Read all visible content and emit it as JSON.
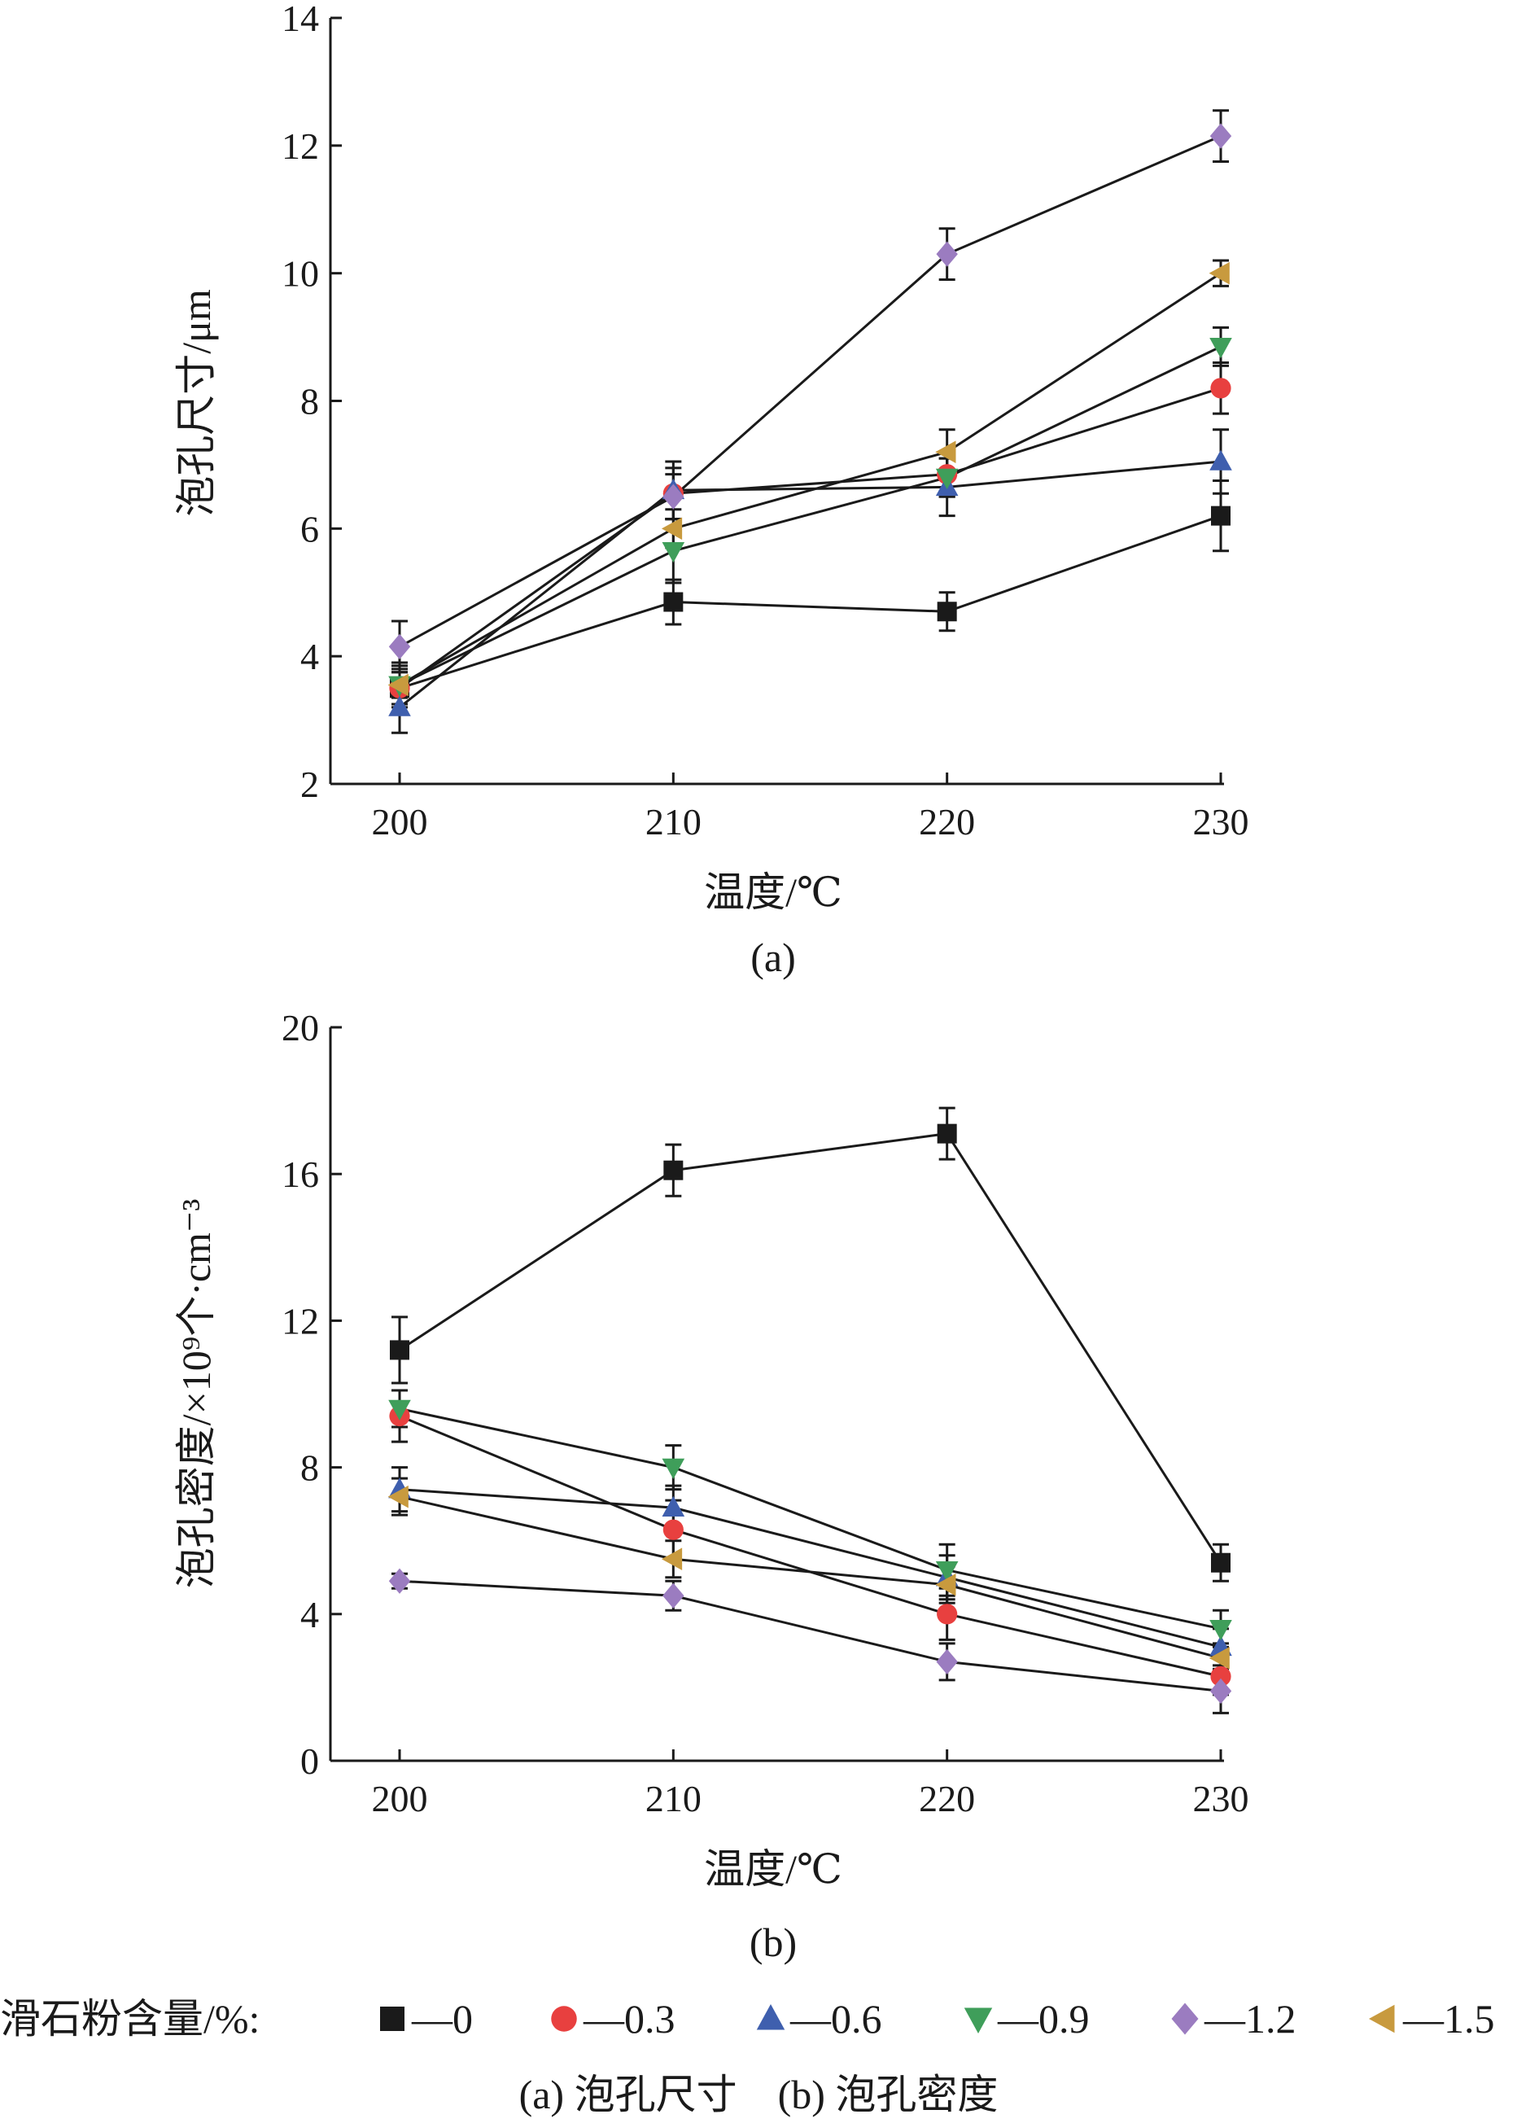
{
  "legend": {
    "title": "滑石粉含量/%:",
    "entries": [
      {
        "marker": "square",
        "label": "—0",
        "color": "#1a1a1a"
      },
      {
        "marker": "circle",
        "label": "—0.3",
        "color": "#e8403f"
      },
      {
        "marker": "triangle-up",
        "label": "—0.6",
        "color": "#3f5fae"
      },
      {
        "marker": "triangle-down",
        "label": "—0.9",
        "color": "#3f9e5a"
      },
      {
        "marker": "diamond",
        "label": "—1.2",
        "color": "#9b7cc0"
      },
      {
        "marker": "triangle-left",
        "label": "—1.5",
        "color": "#c89a3e"
      }
    ]
  },
  "caption": "(a) 泡孔尺寸　(b) 泡孔密度",
  "chart_data": [
    {
      "type": "line",
      "panel_label": "(a)",
      "title": "",
      "xlabel": "温度/℃",
      "ylabel": "泡孔尺寸/μm",
      "x": [
        200,
        210,
        220,
        230
      ],
      "xticks": [
        "200",
        "210",
        "220",
        "230"
      ],
      "ylim": [
        2,
        14
      ],
      "yticks": [
        2,
        4,
        6,
        8,
        10,
        12,
        14
      ],
      "grid": false,
      "series": [
        {
          "name": "0",
          "values": [
            3.5,
            4.85,
            4.7,
            6.2
          ],
          "errors": [
            0.4,
            0.35,
            0.3,
            0.55
          ]
        },
        {
          "name": "0.3",
          "values": [
            3.5,
            6.55,
            6.85,
            8.2
          ],
          "errors": [
            0.3,
            0.4,
            0.35,
            0.4
          ]
        },
        {
          "name": "0.6",
          "values": [
            3.2,
            6.6,
            6.65,
            7.05
          ],
          "errors": [
            0.4,
            0.45,
            0.45,
            0.5
          ]
        },
        {
          "name": "0.9",
          "values": [
            3.55,
            5.65,
            6.8,
            8.85
          ],
          "errors": [
            0.3,
            0.5,
            0.3,
            0.3
          ]
        },
        {
          "name": "1.2",
          "values": [
            4.15,
            6.5,
            10.3,
            12.15
          ],
          "errors": [
            0.4,
            0.35,
            0.4,
            0.4
          ]
        },
        {
          "name": "1.5",
          "values": [
            3.55,
            6.0,
            7.2,
            10.0
          ],
          "errors": [
            0.2,
            0.3,
            0.35,
            0.2
          ]
        }
      ]
    },
    {
      "type": "line",
      "panel_label": "(b)",
      "title": "",
      "xlabel": "温度/℃",
      "ylabel": "泡孔密度/×10⁹个·cm⁻³",
      "x": [
        200,
        210,
        220,
        230
      ],
      "xticks": [
        "200",
        "210",
        "220",
        "230"
      ],
      "ylim": [
        0,
        20
      ],
      "yticks": [
        0,
        4,
        8,
        12,
        16,
        20
      ],
      "grid": false,
      "series": [
        {
          "name": "0",
          "values": [
            11.2,
            16.1,
            17.1,
            5.4
          ],
          "errors": [
            0.9,
            0.7,
            0.7,
            0.5
          ]
        },
        {
          "name": "0.3",
          "values": [
            9.4,
            6.3,
            4.0,
            2.3
          ],
          "errors": [
            0.7,
            0.8,
            0.7,
            0.5
          ]
        },
        {
          "name": "0.6",
          "values": [
            7.4,
            6.9,
            5.0,
            3.1
          ],
          "errors": [
            0.6,
            0.6,
            0.6,
            0.5
          ]
        },
        {
          "name": "0.9",
          "values": [
            9.6,
            8.0,
            5.2,
            3.6
          ],
          "errors": [
            0.5,
            0.6,
            0.7,
            0.5
          ]
        },
        {
          "name": "1.2",
          "values": [
            4.9,
            4.5,
            2.7,
            1.9
          ],
          "errors": [
            0.2,
            0.4,
            0.5,
            0.6
          ]
        },
        {
          "name": "1.5",
          "values": [
            7.2,
            5.5,
            4.8,
            2.8
          ],
          "errors": [
            0.5,
            0.5,
            0.5,
            0.4
          ]
        }
      ]
    }
  ]
}
